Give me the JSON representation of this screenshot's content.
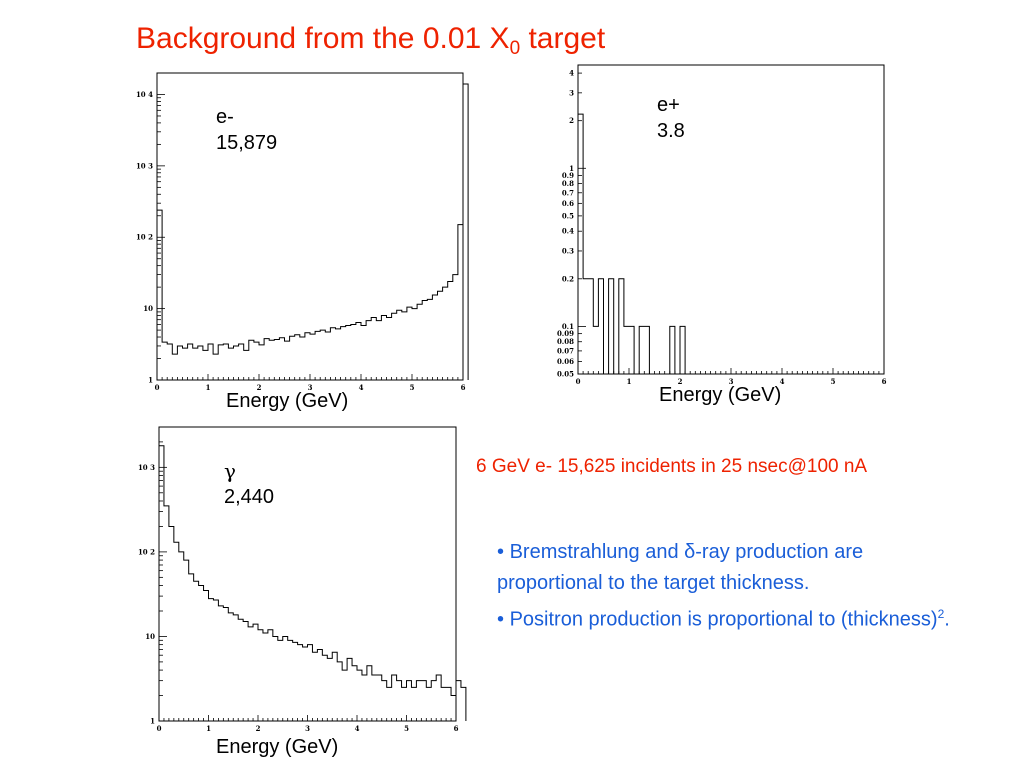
{
  "title": {
    "prefix": "Background from the 0.01 X",
    "sub": "0",
    "suffix": " target"
  },
  "annotations": {
    "electron": {
      "label": "e-",
      "count": "15,879"
    },
    "positron": {
      "label": "e+",
      "count": "3.8"
    },
    "photon": {
      "label": "γ",
      "count": "2,440"
    }
  },
  "incident_text": "6 GeV e- 15,625 incidents in 25 nsec@100 nA",
  "bullets": [
    {
      "marker": "•",
      "text": "Bremstrahlung and δ-ray production are proportional to the target thickness."
    },
    {
      "marker": "•",
      "text_main": "Positron production is proportional to (thickness)",
      "superscript": "2",
      "text_end": "."
    }
  ],
  "colors": {
    "title": "#ee2200",
    "incident": "#ee2200",
    "bullets": "#1a5ed8",
    "axis": "#000000"
  },
  "chart_data": [
    {
      "type": "bar",
      "name": "electron",
      "xlabel": "Energy (GeV)",
      "ylabel": "",
      "xlim": [
        0,
        6
      ],
      "ylim": [
        1,
        20000
      ],
      "yscale": "log",
      "x_ticks": [
        "0",
        "1",
        "2",
        "3",
        "4",
        "5",
        "6"
      ],
      "y_tick_labels": [
        "1",
        "10",
        "10 2",
        "10 3",
        "10 4"
      ],
      "bin_width": 0.1,
      "values": [
        240,
        3.4,
        3.2,
        2.3,
        3.0,
        2.8,
        3.2,
        2.8,
        3.0,
        2.6,
        3.2,
        2.3,
        3.1,
        3.2,
        2.8,
        3.0,
        3.2,
        2.6,
        3.6,
        3.4,
        3.1,
        3.8,
        3.6,
        3.7,
        3.9,
        3.5,
        4.1,
        4.3,
        4.0,
        4.6,
        4.4,
        4.8,
        5.0,
        4.7,
        5.4,
        5.2,
        5.6,
        5.8,
        6.0,
        6.4,
        5.8,
        6.8,
        7.5,
        6.8,
        8.0,
        7.5,
        8.6,
        9.5,
        9.0,
        10.5,
        10.0,
        11.5,
        13.0,
        13.5,
        15.5,
        17.5,
        20,
        24,
        30,
        150,
        14000
      ]
    },
    {
      "type": "bar",
      "name": "positron",
      "xlabel": "Energy (GeV)",
      "ylabel": "",
      "xlim": [
        0,
        6
      ],
      "ylim": [
        0.05,
        4.5
      ],
      "yscale": "log",
      "x_ticks": [
        "0",
        "1",
        "2",
        "3",
        "4",
        "5",
        "6"
      ],
      "y_tick_labels": [
        "0.05",
        "0.06",
        "0.07",
        "0.08",
        "0.09",
        "0.1",
        "0.2",
        "0.3",
        "0.4",
        "0.5",
        "0.6",
        "0.7",
        "0.8",
        "0.9",
        "1",
        "2",
        "3",
        "4"
      ],
      "bin_width": 0.1,
      "values": [
        2.2,
        0.2,
        0.2,
        0.1,
        0.2,
        0,
        0.2,
        0,
        0.2,
        0.1,
        0.1,
        0,
        0.1,
        0.1,
        0,
        0,
        0,
        0,
        0.1,
        0,
        0.1,
        0,
        0,
        0,
        0,
        0,
        0,
        0,
        0,
        0,
        0,
        0,
        0,
        0,
        0,
        0,
        0,
        0,
        0,
        0,
        0,
        0,
        0,
        0,
        0,
        0,
        0,
        0,
        0,
        0,
        0,
        0,
        0,
        0,
        0,
        0,
        0,
        0,
        0,
        0
      ]
    },
    {
      "type": "bar",
      "name": "photon",
      "xlabel": "Energy (GeV)",
      "ylabel": "",
      "xlim": [
        0,
        6
      ],
      "ylim": [
        1,
        3000
      ],
      "yscale": "log",
      "x_ticks": [
        "0",
        "1",
        "2",
        "3",
        "4",
        "5",
        "6"
      ],
      "y_tick_labels": [
        "1",
        "10",
        "10 2",
        "10 3"
      ],
      "bin_width": 0.1,
      "values": [
        1800,
        350,
        200,
        130,
        100,
        80,
        55,
        45,
        40,
        35,
        28,
        27,
        23,
        22,
        19,
        18,
        16,
        15,
        13,
        14,
        12,
        11,
        12,
        10,
        9,
        10,
        9,
        8.5,
        8,
        7.5,
        8,
        6.5,
        7,
        6,
        5.5,
        6.5,
        5,
        4,
        5.5,
        4.5,
        4,
        3.5,
        4.5,
        3.5,
        3.5,
        3,
        2.5,
        3.5,
        3,
        2.5,
        3,
        2.5,
        3,
        3,
        2.5,
        3,
        3.5,
        2.5,
        2.5,
        2,
        3,
        2.5
      ]
    }
  ]
}
